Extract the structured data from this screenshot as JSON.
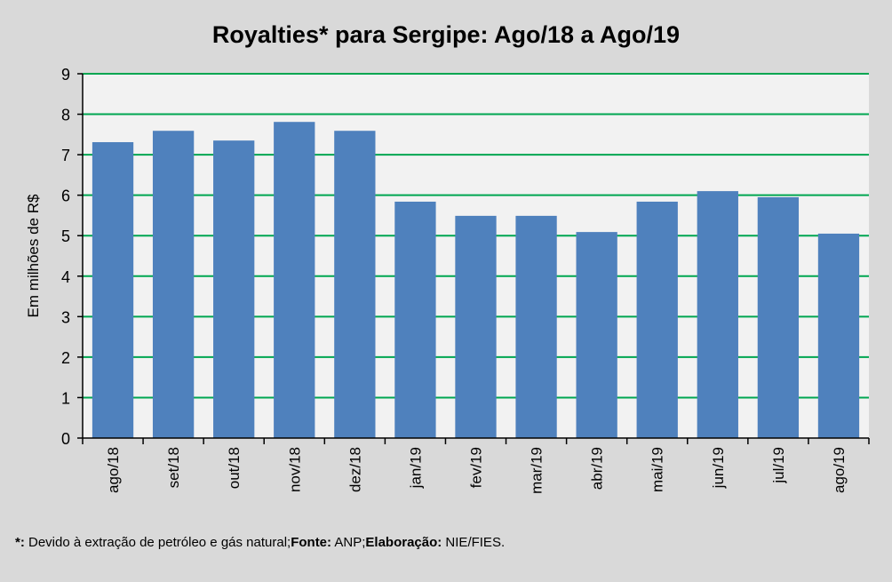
{
  "chart_data": {
    "type": "bar",
    "title": "Royalties* para Sergipe: Ago/18 a Ago/19",
    "xlabel": "",
    "ylabel": "Em milhões de R$",
    "ylim": [
      0,
      9
    ],
    "yticks": [
      0,
      1,
      2,
      3,
      4,
      5,
      6,
      7,
      8,
      9
    ],
    "grid": true,
    "categories": [
      "ago/18",
      "set/18",
      "out/18",
      "nov/18",
      "dez/18",
      "jan/19",
      "fev/19",
      "mar/19",
      "abr/19",
      "mai/19",
      "jun/19",
      "jul/19",
      "ago/19"
    ],
    "values": [
      7.31,
      7.59,
      7.35,
      7.81,
      7.59,
      5.84,
      5.49,
      5.49,
      5.09,
      5.84,
      6.1,
      5.95,
      5.05
    ],
    "colors": {
      "bar": "#4f81bd",
      "grid": "#00a651",
      "plot_bg": "#f2f2f2",
      "page_bg": "#d9d9d9"
    }
  },
  "footnote": {
    "star": "*:",
    "text1": " Devido à extração de petróleo e gás natural;",
    "fonte_label": "Fonte:",
    "fonte": " ANP;",
    "elab_label": "Elaboração:",
    "elab": " NIE/FIES."
  }
}
